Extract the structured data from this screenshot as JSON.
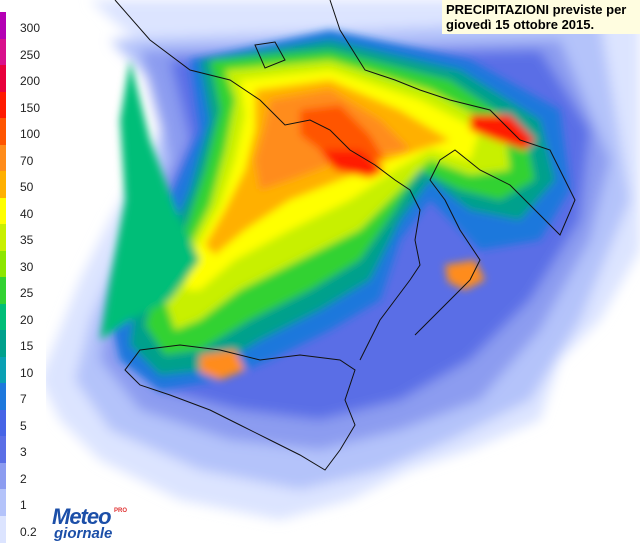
{
  "title": {
    "line1": "PRECIPITAZIONI previste per",
    "line2": "giovedì 15 ottobre 2015."
  },
  "legend": {
    "labels": [
      "300",
      "250",
      "200",
      "150",
      "100",
      "70",
      "50",
      "40",
      "35",
      "30",
      "25",
      "20",
      "15",
      "10",
      "7",
      "5",
      "3",
      "2",
      "1",
      "0.2"
    ],
    "colors": [
      "#b400b4",
      "#d8108c",
      "#e8003c",
      "#ff1a00",
      "#ff5500",
      "#ff8c1a",
      "#ffb000",
      "#ffff00",
      "#c8f000",
      "#8ce600",
      "#32d232",
      "#00be78",
      "#00a08c",
      "#0aa0b4",
      "#1e78dc",
      "#4664e6",
      "#5a6ee6",
      "#8c9cf0",
      "#b4c3fa",
      "#dce4ff"
    ]
  },
  "logo": {
    "top": "Meteo",
    "bottom": "giornale",
    "pro": "PRO"
  },
  "map_colors": {
    "sea": "#ffffff",
    "coast": "#111111"
  }
}
